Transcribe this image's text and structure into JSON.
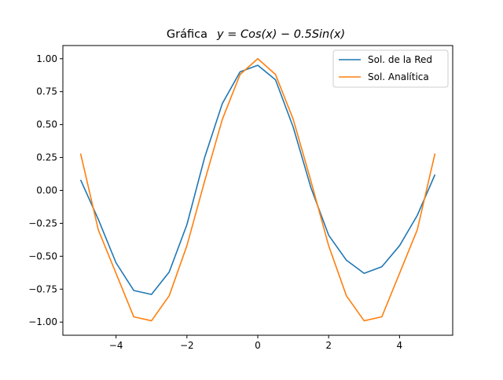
{
  "chart_data": {
    "type": "line",
    "title": "Gráfica",
    "title_formula": "y = Cos(x) − 0.5Sin(x)",
    "xlabel": "",
    "ylabel": "",
    "xlim": [
      -5.5,
      5.5
    ],
    "ylim": [
      -1.1,
      1.1
    ],
    "xticks": [
      -4,
      -2,
      0,
      2,
      4
    ],
    "xtick_labels": [
      "−4",
      "−2",
      "0",
      "2",
      "4"
    ],
    "yticks": [
      -1.0,
      -0.75,
      -0.5,
      -0.25,
      0.0,
      0.25,
      0.5,
      0.75,
      1.0
    ],
    "ytick_labels": [
      "−1.00",
      "−0.75",
      "−0.50",
      "−0.25",
      "0.00",
      "0.25",
      "0.50",
      "0.75",
      "1.00"
    ],
    "grid": false,
    "legend_position": "top-right",
    "series": [
      {
        "name": "Sol. de la Red",
        "color": "#1f77b4",
        "x": [
          -5.0,
          -4.5,
          -4.0,
          -3.5,
          -3.0,
          -2.5,
          -2.0,
          -1.5,
          -1.0,
          -0.5,
          0.0,
          0.5,
          1.0,
          1.5,
          2.0,
          2.5,
          3.0,
          3.5,
          4.0,
          4.5,
          5.0
        ],
        "y": [
          0.08,
          -0.22,
          -0.55,
          -0.76,
          -0.79,
          -0.62,
          -0.26,
          0.25,
          0.66,
          0.9,
          0.95,
          0.84,
          0.48,
          0.02,
          -0.34,
          -0.53,
          -0.63,
          -0.58,
          -0.42,
          -0.19,
          0.12
        ]
      },
      {
        "name": "Sol. Analítica",
        "color": "#ff7f0e",
        "x": [
          -5.0,
          -4.5,
          -4.0,
          -3.5,
          -3.0,
          -2.5,
          -2.0,
          -1.5,
          -1.0,
          -0.5,
          0.0,
          0.5,
          1.0,
          1.5,
          2.0,
          2.5,
          3.0,
          3.5,
          4.0,
          4.5,
          5.0
        ],
        "y": [
          0.28,
          -0.3,
          -0.63,
          -0.96,
          -0.99,
          -0.8,
          -0.42,
          0.07,
          0.54,
          0.88,
          1.0,
          0.88,
          0.54,
          0.07,
          -0.42,
          -0.8,
          -0.99,
          -0.96,
          -0.63,
          -0.3,
          0.28
        ]
      }
    ]
  }
}
